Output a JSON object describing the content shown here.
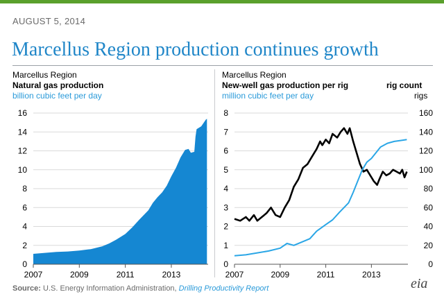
{
  "header": {
    "date": "AUGUST 5, 2014",
    "title": "Marcellus Region production continues growth"
  },
  "source": {
    "label": "Source:",
    "text": " U.S. Energy Information Administration, ",
    "report": "Drilling Productivity Report"
  },
  "logo": {
    "text": "eia"
  },
  "colors": {
    "production": "#1587d2",
    "rigs": "#2aa6e6",
    "newwell": "#000000",
    "accent_green": "#5aa02c"
  },
  "chart_data": [
    {
      "type": "area",
      "region": "Marcellus Region",
      "title": "Natural gas production",
      "unit": "billion cubic feet per day",
      "x_ticks": [
        "2007",
        "2009",
        "2011",
        "2013"
      ],
      "xlim": [
        2007,
        2014.6
      ],
      "ylim": [
        0,
        16
      ],
      "y_ticks": [
        0,
        2,
        4,
        6,
        8,
        10,
        12,
        14,
        16
      ],
      "grid": true,
      "series": [
        {
          "values": [
            [
              2007.0,
              1.1
            ],
            [
              2007.5,
              1.2
            ],
            [
              2008.0,
              1.3
            ],
            [
              2008.5,
              1.35
            ],
            [
              2009.0,
              1.45
            ],
            [
              2009.5,
              1.6
            ],
            [
              2010.0,
              1.9
            ],
            [
              2010.3,
              2.2
            ],
            [
              2010.6,
              2.6
            ],
            [
              2011.0,
              3.2
            ],
            [
              2011.3,
              3.9
            ],
            [
              2011.6,
              4.7
            ],
            [
              2012.0,
              5.7
            ],
            [
              2012.2,
              6.5
            ],
            [
              2012.4,
              7.1
            ],
            [
              2012.6,
              7.6
            ],
            [
              2012.8,
              8.3
            ],
            [
              2013.0,
              9.3
            ],
            [
              2013.2,
              10.2
            ],
            [
              2013.4,
              11.3
            ],
            [
              2013.6,
              12.1
            ],
            [
              2013.75,
              12.2
            ],
            [
              2013.85,
              11.8
            ],
            [
              2014.0,
              11.9
            ],
            [
              2014.05,
              13.5
            ],
            [
              2014.1,
              14.3
            ],
            [
              2014.3,
              14.6
            ],
            [
              2014.5,
              15.3
            ],
            [
              2014.55,
              15.4
            ]
          ]
        }
      ]
    },
    {
      "type": "line",
      "region": "Marcellus Region",
      "title": "New-well gas production  per rig",
      "unit": "million cubic feet per day",
      "y2_title": "rig count",
      "y2_unit": "rigs",
      "x_ticks": [
        "2007",
        "2009",
        "2011",
        "2013"
      ],
      "xlim": [
        2007,
        2014.6
      ],
      "ylim": [
        0,
        8
      ],
      "y_ticks": [
        0,
        1,
        2,
        3,
        4,
        5,
        6,
        7,
        8
      ],
      "y2lim": [
        0,
        160
      ],
      "y2_ticks": [
        0,
        20,
        40,
        60,
        80,
        100,
        120,
        140,
        160
      ],
      "grid": true,
      "series": [
        {
          "axis": "left",
          "values": [
            [
              2007.0,
              2.4
            ],
            [
              2007.25,
              2.3
            ],
            [
              2007.5,
              2.5
            ],
            [
              2007.65,
              2.3
            ],
            [
              2007.85,
              2.6
            ],
            [
              2008.0,
              2.3
            ],
            [
              2008.2,
              2.5
            ],
            [
              2008.4,
              2.7
            ],
            [
              2008.6,
              3.0
            ],
            [
              2008.8,
              2.6
            ],
            [
              2009.0,
              2.5
            ],
            [
              2009.2,
              3.0
            ],
            [
              2009.4,
              3.4
            ],
            [
              2009.6,
              4.1
            ],
            [
              2009.8,
              4.5
            ],
            [
              2010.0,
              5.1
            ],
            [
              2010.2,
              5.3
            ],
            [
              2010.4,
              5.7
            ],
            [
              2010.6,
              6.1
            ],
            [
              2010.75,
              6.5
            ],
            [
              2010.85,
              6.3
            ],
            [
              2011.0,
              6.6
            ],
            [
              2011.15,
              6.4
            ],
            [
              2011.3,
              6.9
            ],
            [
              2011.5,
              6.7
            ],
            [
              2011.65,
              7.0
            ],
            [
              2011.8,
              7.2
            ],
            [
              2011.95,
              6.9
            ],
            [
              2012.05,
              7.2
            ],
            [
              2012.2,
              6.5
            ],
            [
              2012.35,
              5.9
            ],
            [
              2012.5,
              5.3
            ],
            [
              2012.65,
              4.9
            ],
            [
              2012.8,
              5.0
            ],
            [
              2012.95,
              4.7
            ],
            [
              2013.1,
              4.4
            ],
            [
              2013.25,
              4.2
            ],
            [
              2013.35,
              4.5
            ],
            [
              2013.5,
              4.9
            ],
            [
              2013.65,
              4.7
            ],
            [
              2013.8,
              4.8
            ],
            [
              2013.95,
              5.0
            ],
            [
              2014.1,
              4.9
            ],
            [
              2014.25,
              4.8
            ],
            [
              2014.35,
              5.0
            ],
            [
              2014.45,
              4.6
            ],
            [
              2014.55,
              4.9
            ]
          ]
        },
        {
          "axis": "right",
          "values": [
            [
              2007.0,
              9
            ],
            [
              2007.5,
              10
            ],
            [
              2008.0,
              12
            ],
            [
              2008.5,
              14
            ],
            [
              2009.0,
              17
            ],
            [
              2009.3,
              22
            ],
            [
              2009.6,
              20
            ],
            [
              2010.0,
              24
            ],
            [
              2010.3,
              27
            ],
            [
              2010.6,
              35
            ],
            [
              2011.0,
              42
            ],
            [
              2011.3,
              47
            ],
            [
              2011.6,
              55
            ],
            [
              2012.0,
              65
            ],
            [
              2012.2,
              76
            ],
            [
              2012.4,
              88
            ],
            [
              2012.6,
              100
            ],
            [
              2012.8,
              108
            ],
            [
              2013.0,
              112
            ],
            [
              2013.2,
              118
            ],
            [
              2013.4,
              124
            ],
            [
              2013.7,
              128
            ],
            [
              2014.0,
              130
            ],
            [
              2014.3,
              131
            ],
            [
              2014.55,
              132
            ]
          ]
        }
      ]
    }
  ]
}
